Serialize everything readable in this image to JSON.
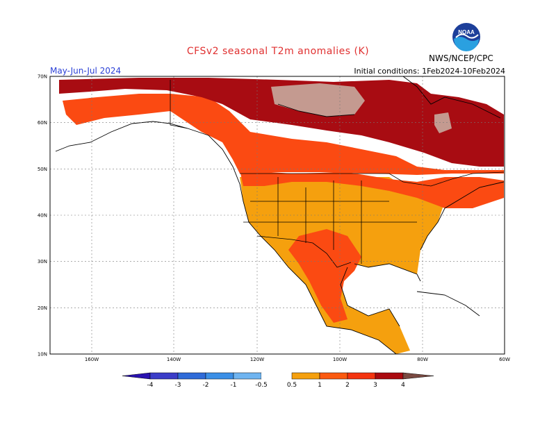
{
  "header": {
    "title": "CFSv2 seasonal T2m anomalies (K)",
    "period": "May-Jun-Jul 2024",
    "initial_conditions": "Initial conditions: 1Feb2024-10Feb2024",
    "agency": "NWS/NCEP/CPC",
    "logo_text": "NOAA"
  },
  "map": {
    "lat_labels": [
      "70N",
      "60N",
      "50N",
      "40N",
      "30N",
      "20N",
      "10N"
    ],
    "lon_labels": [
      "160W",
      "140W",
      "120W",
      "100W",
      "80W",
      "60W"
    ]
  },
  "legend": {
    "labels": [
      "-4",
      "-3",
      "-2",
      "-1",
      "-0.5",
      "0.5",
      "1",
      "2",
      "3",
      "4"
    ],
    "colors": {
      "cold": [
        "#2a12b0",
        "#3b3dc8",
        "#2f6bd8",
        "#3b8fe6",
        "#6fb4f0"
      ],
      "warm": [
        "#f5a00e",
        "#fb5a10",
        "#f43410",
        "#aa0a10",
        "#c89c92",
        "#7a4a42"
      ]
    }
  },
  "anomaly_colors": {
    "orange_0_5_to_1": "#f5a00e",
    "red_1_to_2": "#fb4a12",
    "darkred_2_to_3": "#a80c12",
    "tan_3_to_4": "#c49a90"
  }
}
